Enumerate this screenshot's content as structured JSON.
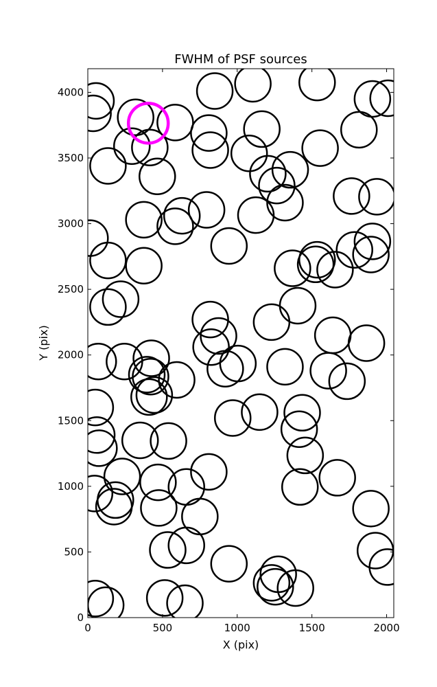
{
  "chart_data": {
    "type": "scatter",
    "title": "FWHM of PSF sources",
    "xlabel": "X (pix)",
    "ylabel": "Y (pix)",
    "xlim": [
      0,
      2048
    ],
    "ylim": [
      0,
      4180
    ],
    "xticks": [
      0,
      500,
      1000,
      1500,
      2000
    ],
    "yticks": [
      0,
      500,
      1000,
      1500,
      2000,
      2500,
      3000,
      3500,
      4000
    ],
    "xtick_labels": [
      "0",
      "500",
      "1000",
      "1500",
      "2000"
    ],
    "ytick_labels": [
      "0",
      "500",
      "1000",
      "1500",
      "2000",
      "2500",
      "3000",
      "3500",
      "4000"
    ],
    "marker": "open circle",
    "source_color": "#000000",
    "highlight_color": "#ff00ff",
    "sources": [
      {
        "x": 55,
        "y": 3935
      },
      {
        "x": 35,
        "y": 3840
      },
      {
        "x": 320,
        "y": 3810
      },
      {
        "x": 585,
        "y": 3770
      },
      {
        "x": 295,
        "y": 3590
      },
      {
        "x": 415,
        "y": 3580
      },
      {
        "x": 135,
        "y": 3440
      },
      {
        "x": 465,
        "y": 3360
      },
      {
        "x": 850,
        "y": 4010
      },
      {
        "x": 1105,
        "y": 4065
      },
      {
        "x": 1535,
        "y": 4075
      },
      {
        "x": 1905,
        "y": 3950
      },
      {
        "x": 2010,
        "y": 3955
      },
      {
        "x": 810,
        "y": 3690
      },
      {
        "x": 820,
        "y": 3560
      },
      {
        "x": 1165,
        "y": 3720
      },
      {
        "x": 1080,
        "y": 3535
      },
      {
        "x": 1555,
        "y": 3575
      },
      {
        "x": 1815,
        "y": 3715
      },
      {
        "x": 1205,
        "y": 3380
      },
      {
        "x": 1355,
        "y": 3410
      },
      {
        "x": 1265,
        "y": 3290
      },
      {
        "x": 1320,
        "y": 3160
      },
      {
        "x": 1765,
        "y": 3210
      },
      {
        "x": 1935,
        "y": 3205
      },
      {
        "x": 375,
        "y": 3030
      },
      {
        "x": 585,
        "y": 2980
      },
      {
        "x": 630,
        "y": 3060
      },
      {
        "x": 795,
        "y": 3105
      },
      {
        "x": 1125,
        "y": 3065
      },
      {
        "x": 15,
        "y": 2890
      },
      {
        "x": 135,
        "y": 2720
      },
      {
        "x": 375,
        "y": 2680
      },
      {
        "x": 945,
        "y": 2830
      },
      {
        "x": 1370,
        "y": 2660
      },
      {
        "x": 1525,
        "y": 2690
      },
      {
        "x": 1535,
        "y": 2725
      },
      {
        "x": 1655,
        "y": 2650
      },
      {
        "x": 1785,
        "y": 2800
      },
      {
        "x": 1905,
        "y": 2865
      },
      {
        "x": 1895,
        "y": 2765
      },
      {
        "x": 220,
        "y": 2425
      },
      {
        "x": 135,
        "y": 2365
      },
      {
        "x": 820,
        "y": 2270
      },
      {
        "x": 1230,
        "y": 2250
      },
      {
        "x": 1405,
        "y": 2375
      },
      {
        "x": 875,
        "y": 2145
      },
      {
        "x": 825,
        "y": 2060
      },
      {
        "x": 1640,
        "y": 2150
      },
      {
        "x": 1865,
        "y": 2090
      },
      {
        "x": 70,
        "y": 1950
      },
      {
        "x": 245,
        "y": 1950
      },
      {
        "x": 425,
        "y": 1975
      },
      {
        "x": 1005,
        "y": 1935
      },
      {
        "x": 920,
        "y": 1895
      },
      {
        "x": 1320,
        "y": 1910
      },
      {
        "x": 1610,
        "y": 1880
      },
      {
        "x": 1735,
        "y": 1800
      },
      {
        "x": 395,
        "y": 1850
      },
      {
        "x": 420,
        "y": 1835
      },
      {
        "x": 595,
        "y": 1810
      },
      {
        "x": 410,
        "y": 1680
      },
      {
        "x": 445,
        "y": 1695
      },
      {
        "x": 50,
        "y": 1600
      },
      {
        "x": 970,
        "y": 1520
      },
      {
        "x": 1150,
        "y": 1565
      },
      {
        "x": 1435,
        "y": 1560
      },
      {
        "x": 1415,
        "y": 1435
      },
      {
        "x": 60,
        "y": 1390
      },
      {
        "x": 75,
        "y": 1290
      },
      {
        "x": 350,
        "y": 1350
      },
      {
        "x": 540,
        "y": 1345
      },
      {
        "x": 1455,
        "y": 1235
      },
      {
        "x": 230,
        "y": 1075
      },
      {
        "x": 470,
        "y": 1030
      },
      {
        "x": 660,
        "y": 995
      },
      {
        "x": 810,
        "y": 1110
      },
      {
        "x": 1420,
        "y": 995
      },
      {
        "x": 1670,
        "y": 1065
      },
      {
        "x": 45,
        "y": 945
      },
      {
        "x": 185,
        "y": 895
      },
      {
        "x": 175,
        "y": 845
      },
      {
        "x": 475,
        "y": 835
      },
      {
        "x": 750,
        "y": 770
      },
      {
        "x": 1895,
        "y": 830
      },
      {
        "x": 660,
        "y": 550
      },
      {
        "x": 535,
        "y": 515
      },
      {
        "x": 945,
        "y": 410
      },
      {
        "x": 1925,
        "y": 510
      },
      {
        "x": 2005,
        "y": 385
      },
      {
        "x": 1275,
        "y": 330
      },
      {
        "x": 1230,
        "y": 265
      },
      {
        "x": 1255,
        "y": 235
      },
      {
        "x": 1390,
        "y": 225
      },
      {
        "x": 50,
        "y": 145
      },
      {
        "x": 120,
        "y": 95
      },
      {
        "x": 515,
        "y": 150
      },
      {
        "x": 650,
        "y": 110
      }
    ],
    "highlight": {
      "x": 405,
      "y": 3765
    }
  }
}
